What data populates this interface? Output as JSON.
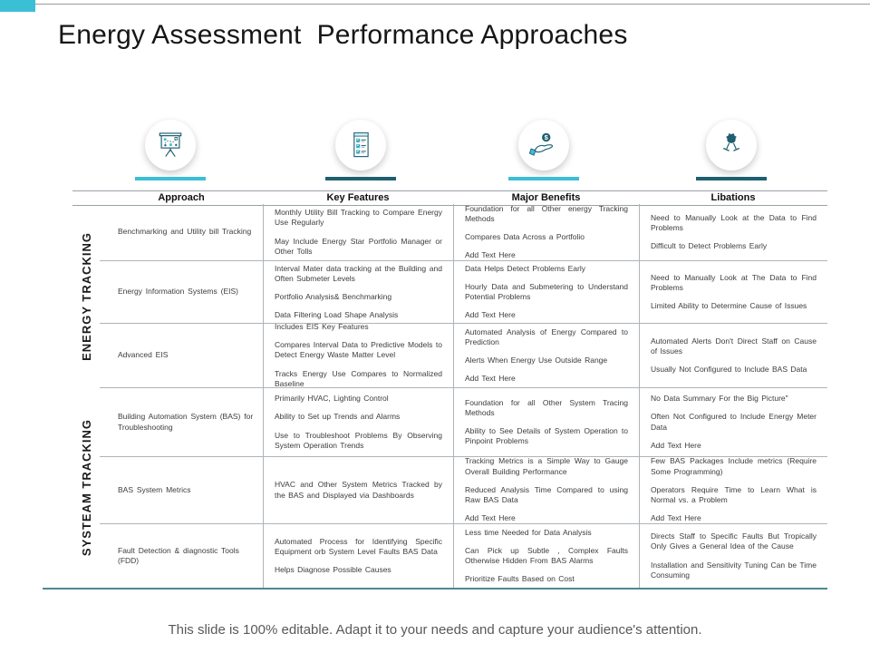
{
  "slide": {
    "title": "Energy Assessment  Performance Approaches",
    "footer": "This slide is 100% editable. Adapt it to your needs and capture your audience's attention."
  },
  "colors": {
    "accent_light": "#3bbfd4",
    "accent_dark": "#1f5f70",
    "table_border": "#aeb4ba",
    "bottom_rule": "#4e8794",
    "footer_text": "#595959"
  },
  "icons": [
    {
      "name": "presentation-chart-icon",
      "underline": "light"
    },
    {
      "name": "checklist-icon",
      "underline": "dark"
    },
    {
      "name": "hand-dollar-icon",
      "underline": "light"
    },
    {
      "name": "wine-glasses-icon",
      "underline": "dark"
    }
  ],
  "table": {
    "headers": [
      "Approach",
      "Key Features",
      "Major Benefits",
      "Libations"
    ],
    "groups": [
      {
        "label": "ENERGY TRACKING"
      },
      {
        "label": "SYSTEAM TRACKING"
      }
    ],
    "rows": [
      {
        "approach": "Benchmarking  and Utility bill Tracking",
        "key_features": [
          "Monthly Utility Bill Tracking to Compare Energy Use Regularly",
          "May Include Energy Star Portfolio Manager or Other Tolls"
        ],
        "major_benefits": [
          "Foundation for all Other energy Tracking Methods",
          "Compares Data Across a Portfolio",
          "Add Text Here"
        ],
        "libations": [
          "Need to Manually Look at the Data to Find Problems",
          "Difficult to Detect Problems Early"
        ]
      },
      {
        "approach": "Energy Information Systems (EIS)",
        "key_features": [
          "Interval Mater data tracking at the Building and Often Submeter Levels",
          "Portfolio Analysis& Benchmarking",
          "Data Filtering Load Shape Analysis"
        ],
        "major_benefits": [
          "Data Helps Detect Problems Early",
          "Hourly Data and Submetering to Understand Potential Problems",
          "Add Text Here"
        ],
        "libations": [
          "Need to Manually Look at The Data to Find Problems",
          "Limited Ability to Determine Cause of Issues"
        ]
      },
      {
        "approach": "Advanced EIS",
        "key_features": [
          "Includes EIS Key Features",
          "Compares Interval Data to Predictive Models to Detect Energy Waste Matter Level",
          "Tracks Energy Use Compares to Normalized Baseline"
        ],
        "major_benefits": [
          "Automated Analysis of Energy Compared to Prediction",
          "Alerts When Energy Use Outside Range",
          "Add Text Here"
        ],
        "libations": [
          "Automated Alerts Don't Direct Staff on Cause of Issues",
          "Usually Not Configured to Include BAS Data"
        ]
      },
      {
        "approach": "Building Automation System (BAS) for Troubleshooting",
        "key_features": [
          "Primarily HVAC, Lighting Control",
          "Ability to Set up Trends and Alarms",
          "Use to Troubleshoot Problems By Observing System Operation Trends"
        ],
        "major_benefits": [
          "Foundation for all Other System Tracing Methods",
          "Ability to See Details of System Operation to Pinpoint Problems"
        ],
        "libations": [
          "No Data Summary For the Big Picture\"",
          "Often Not Configured to Include Energy Meter Data",
          "Add Text Here"
        ]
      },
      {
        "approach": "BAS System Metrics",
        "key_features": [
          "HVAC and Other System Metrics Tracked by the BAS and Displayed via Dashboards"
        ],
        "major_benefits": [
          "Tracking Metrics is a Simple Way to Gauge Overall Building Performance",
          "Reduced Analysis Time Compared to using Raw BAS Data",
          "Add Text Here"
        ],
        "libations": [
          "Few BAS Packages Include metrics (Require Some Programming)",
          "Operators Require Time to Learn What is Normal vs. a Problem",
          "Add Text Here"
        ]
      },
      {
        "approach": "Fault Detection & diagnostic Tools (FDD)",
        "key_features": [
          "Automated Process for Identifying Specific Equipment orb System Level Faults BAS Data",
          "Helps Diagnose Possible Causes"
        ],
        "major_benefits": [
          "Less time Needed for Data Analysis",
          "Can Pick up Subtle , Complex Faults Otherwise Hidden From BAS Alarms",
          "Prioritize Faults Based on Cost"
        ],
        "libations": [
          "Directs Staff to Specific Faults But Tropically Only Gives a General Idea of the Cause",
          "Installation and Sensitivity Tuning Can be Time Consuming"
        ]
      }
    ]
  }
}
